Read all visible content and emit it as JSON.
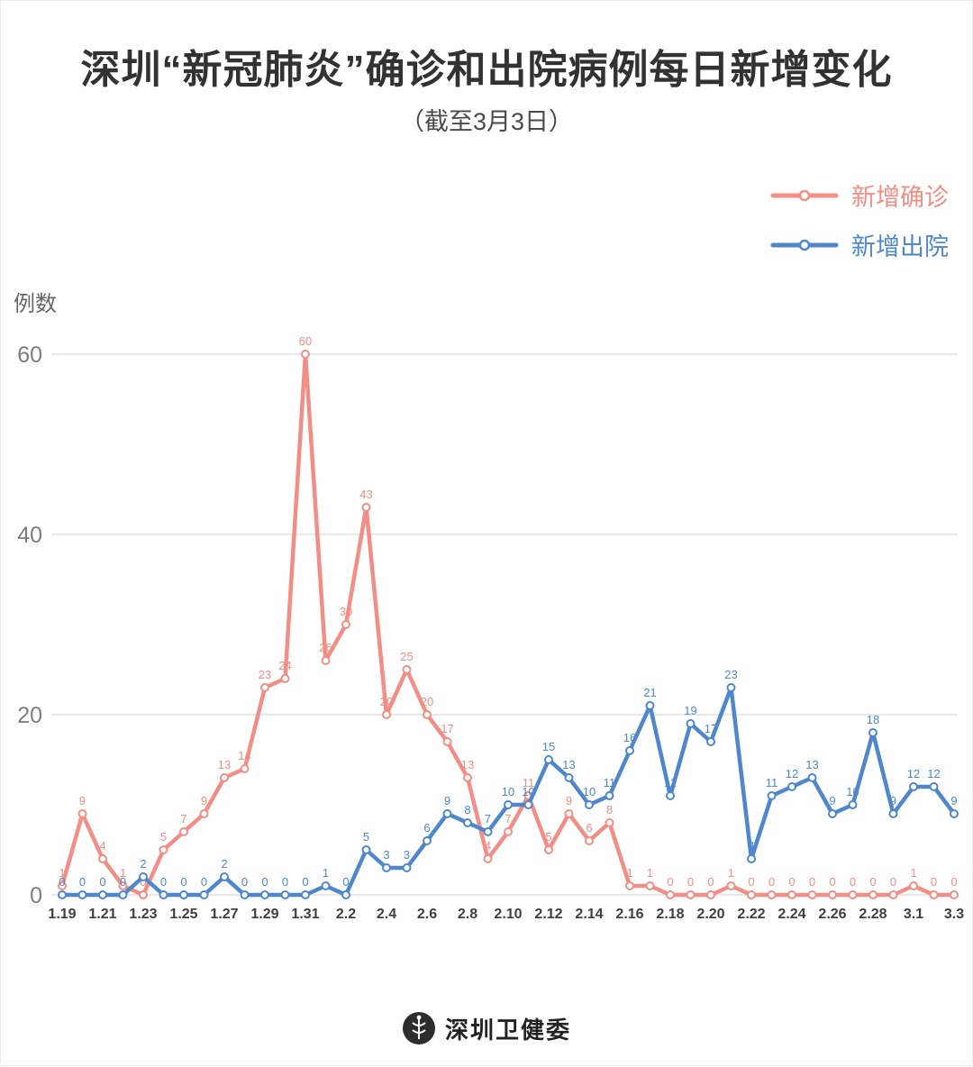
{
  "title": "深圳“新冠肺炎”确诊和出院病例每日新增变化",
  "subtitle": "（截至3月3日）",
  "y_axis_label": "例数",
  "legend": {
    "items": [
      {
        "key": "confirmed",
        "label": "新增确诊",
        "color": "#f28e86"
      },
      {
        "key": "discharged",
        "label": "新增出院",
        "color": "#4e87cb"
      }
    ]
  },
  "footer": {
    "brand": "深圳卫健委",
    "logo": "shenzhen-health-commission-emblem"
  },
  "chart_data": {
    "type": "line",
    "title": "深圳“新冠肺炎”确诊和出院病例每日新增变化（截至3月3日）",
    "xlabel": "",
    "ylabel": "例数",
    "ylim": [
      0,
      60
    ],
    "yticks": [
      0,
      20,
      40,
      60
    ],
    "grid": true,
    "legend_position": "top-right",
    "markers": "open-circle",
    "data_labels": true,
    "x": [
      "1.19",
      "1.20",
      "1.21",
      "1.22",
      "1.23",
      "1.24",
      "1.25",
      "1.26",
      "1.27",
      "1.28",
      "1.29",
      "1.30",
      "1.31",
      "2.1",
      "2.2",
      "2.3",
      "2.4",
      "2.5",
      "2.6",
      "2.7",
      "2.8",
      "2.9",
      "2.10",
      "2.11",
      "2.12",
      "2.13",
      "2.14",
      "2.15",
      "2.16",
      "2.17",
      "2.18",
      "2.19",
      "2.20",
      "2.21",
      "2.22",
      "2.23",
      "2.24",
      "2.25",
      "2.26",
      "2.27",
      "2.28",
      "2.29",
      "3.1",
      "3.2",
      "3.3"
    ],
    "x_tick_labels": [
      "1.19",
      "1.21",
      "1.23",
      "1.25",
      "1.27",
      "1.29",
      "1.31",
      "2.2",
      "2.4",
      "2.6",
      "2.8",
      "2.10",
      "2.12",
      "2.14",
      "2.16",
      "2.18",
      "2.20",
      "2.22",
      "2.24",
      "2.26",
      "2.28",
      "3.1",
      "3.3"
    ],
    "series": [
      {
        "key": "confirmed",
        "name": "新增确诊",
        "color": "#f28e86",
        "values": [
          1,
          9,
          4,
          1,
          0,
          5,
          7,
          9,
          13,
          14,
          23,
          24,
          60,
          26,
          30,
          43,
          20,
          25,
          20,
          17,
          13,
          4,
          7,
          11,
          5,
          9,
          6,
          8,
          1,
          1,
          0,
          0,
          0,
          1,
          0,
          0,
          0,
          0,
          0,
          0,
          0,
          0,
          1,
          0,
          0
        ]
      },
      {
        "key": "discharged",
        "name": "新增出院",
        "color": "#4e87cb",
        "values": [
          0,
          0,
          0,
          0,
          2,
          0,
          0,
          0,
          2,
          0,
          0,
          0,
          0,
          1,
          0,
          5,
          3,
          3,
          6,
          9,
          8,
          7,
          10,
          10,
          15,
          13,
          10,
          11,
          16,
          21,
          11,
          19,
          17,
          23,
          4,
          11,
          12,
          13,
          9,
          10,
          18,
          9,
          12,
          12,
          9
        ]
      }
    ]
  }
}
